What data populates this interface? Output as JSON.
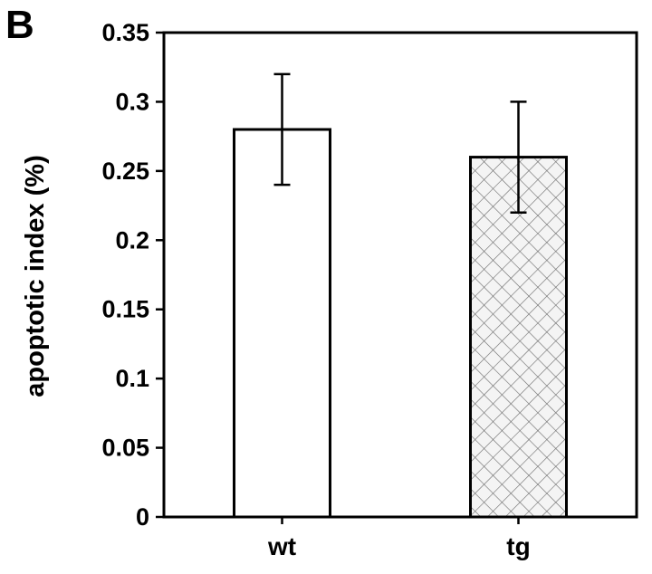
{
  "panel_label": "B",
  "chart_data": {
    "type": "bar",
    "categories": [
      "wt",
      "tg"
    ],
    "values": [
      0.28,
      0.26
    ],
    "error_upper": [
      0.32,
      0.3
    ],
    "error_lower": [
      0.24,
      0.22
    ],
    "bar_fills": [
      "white",
      "crosshatch"
    ],
    "ylabel": "apoptotic index (%)",
    "xlabel": "",
    "ylim": [
      0,
      0.35
    ],
    "yticks": [
      0,
      0.05,
      0.1,
      0.15,
      0.2,
      0.25,
      0.3,
      0.35
    ],
    "ytick_labels": [
      "0",
      "0.05",
      "0.1",
      "0.15",
      "0.2",
      "0.25",
      "0.3",
      "0.35"
    ],
    "grid": false,
    "legend": "none"
  },
  "colors": {
    "axis": "#000000",
    "bar_stroke": "#000000",
    "hatch": "#555555"
  }
}
